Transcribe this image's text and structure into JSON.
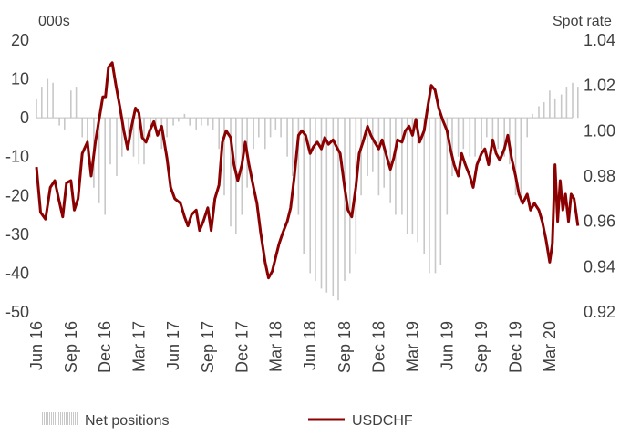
{
  "chart_data": {
    "type": "bar+line",
    "left_axis": {
      "unit_label": "000s",
      "range": [
        -50,
        20
      ],
      "ticks": [
        "20",
        "10",
        "0",
        "-10",
        "-20",
        "-30",
        "-40",
        "-50"
      ]
    },
    "right_axis": {
      "unit_label": "Spot rate",
      "range": [
        0.92,
        1.04
      ],
      "ticks": [
        "1.04",
        "1.02",
        "1.00",
        "0.98",
        "0.96",
        "0.94",
        "0.92"
      ]
    },
    "x_axis": {
      "start": "2016-06",
      "end": "2020-05",
      "tick_labels": [
        "Jun 16",
        "Sep 16",
        "Dec 16",
        "Mar 17",
        "Jun 17",
        "Sep 17",
        "Dec 17",
        "Mar 18",
        "Jun 18",
        "Sep 18",
        "Dec 18",
        "Mar 19",
        "Jun 19",
        "Sep 19",
        "Dec 19",
        "Mar 20"
      ]
    },
    "legend": {
      "position": "bottom",
      "bar_label": "Net positions",
      "line_label": "USDCHF"
    },
    "colors": {
      "line": "#8b0000",
      "bars": "#c8c8c8",
      "text": "#404040",
      "zero_line": "#bfbfbf"
    },
    "grid": false,
    "series": [
      {
        "name": "Net positions",
        "type": "bar",
        "axis": "left",
        "points": [
          [
            "2016-06-01",
            5
          ],
          [
            "2016-06-15",
            8
          ],
          [
            "2016-07-01",
            10
          ],
          [
            "2016-07-15",
            9
          ],
          [
            "2016-08-01",
            -2
          ],
          [
            "2016-08-15",
            -3
          ],
          [
            "2016-09-01",
            7
          ],
          [
            "2016-09-15",
            8
          ],
          [
            "2016-10-01",
            -5
          ],
          [
            "2016-10-15",
            -10
          ],
          [
            "2016-11-01",
            -18
          ],
          [
            "2016-11-15",
            -22
          ],
          [
            "2016-12-01",
            -25
          ],
          [
            "2016-12-15",
            -12
          ],
          [
            "2017-01-01",
            -15
          ],
          [
            "2017-01-15",
            -10
          ],
          [
            "2017-02-01",
            -8
          ],
          [
            "2017-02-15",
            -10
          ],
          [
            "2017-03-01",
            -12
          ],
          [
            "2017-03-15",
            -12
          ],
          [
            "2017-04-01",
            -5
          ],
          [
            "2017-04-15",
            -3
          ],
          [
            "2017-05-01",
            -8
          ],
          [
            "2017-05-15",
            -5
          ],
          [
            "2017-06-01",
            -2
          ],
          [
            "2017-06-15",
            -1
          ],
          [
            "2017-07-01",
            1
          ],
          [
            "2017-07-15",
            -2
          ],
          [
            "2017-08-01",
            -3
          ],
          [
            "2017-08-15",
            -2
          ],
          [
            "2017-09-01",
            -2
          ],
          [
            "2017-09-15",
            -3
          ],
          [
            "2017-10-01",
            -8
          ],
          [
            "2017-10-15",
            -20
          ],
          [
            "2017-11-01",
            -28
          ],
          [
            "2017-11-15",
            -30
          ],
          [
            "2017-12-01",
            -25
          ],
          [
            "2017-12-15",
            -18
          ],
          [
            "2018-01-01",
            -8
          ],
          [
            "2018-01-15",
            -5
          ],
          [
            "2018-02-01",
            -8
          ],
          [
            "2018-02-15",
            -5
          ],
          [
            "2018-03-01",
            -3
          ],
          [
            "2018-03-15",
            -5
          ],
          [
            "2018-04-01",
            -10
          ],
          [
            "2018-04-15",
            -15
          ],
          [
            "2018-05-01",
            -25
          ],
          [
            "2018-05-15",
            -35
          ],
          [
            "2018-06-01",
            -40
          ],
          [
            "2018-06-15",
            -42
          ],
          [
            "2018-07-01",
            -44
          ],
          [
            "2018-07-15",
            -45
          ],
          [
            "2018-08-01",
            -46
          ],
          [
            "2018-08-15",
            -47
          ],
          [
            "2018-09-01",
            -42
          ],
          [
            "2018-09-15",
            -40
          ],
          [
            "2018-10-01",
            -35
          ],
          [
            "2018-10-15",
            -20
          ],
          [
            "2018-11-01",
            -15
          ],
          [
            "2018-11-15",
            -14
          ],
          [
            "2018-12-01",
            -20
          ],
          [
            "2018-12-15",
            -18
          ],
          [
            "2019-01-01",
            -22
          ],
          [
            "2019-01-15",
            -25
          ],
          [
            "2019-02-01",
            -25
          ],
          [
            "2019-02-15",
            -30
          ],
          [
            "2019-03-01",
            -30
          ],
          [
            "2019-03-15",
            -32
          ],
          [
            "2019-04-01",
            -35
          ],
          [
            "2019-04-15",
            -40
          ],
          [
            "2019-05-01",
            -40
          ],
          [
            "2019-05-15",
            -38
          ],
          [
            "2019-06-01",
            -25
          ],
          [
            "2019-06-15",
            -15
          ],
          [
            "2019-07-01",
            -10
          ],
          [
            "2019-07-15",
            -8
          ],
          [
            "2019-08-01",
            -10
          ],
          [
            "2019-08-15",
            -10
          ],
          [
            "2019-09-01",
            -8
          ],
          [
            "2019-09-15",
            -5
          ],
          [
            "2019-10-01",
            -6
          ],
          [
            "2019-10-15",
            -8
          ],
          [
            "2019-11-01",
            -10
          ],
          [
            "2019-11-15",
            -12
          ],
          [
            "2019-12-01",
            -20
          ],
          [
            "2019-12-15",
            -22
          ],
          [
            "2020-01-01",
            -5
          ],
          [
            "2020-01-15",
            1
          ],
          [
            "2020-02-01",
            3
          ],
          [
            "2020-02-15",
            4
          ],
          [
            "2020-03-01",
            7
          ],
          [
            "2020-03-15",
            5
          ],
          [
            "2020-04-01",
            6
          ],
          [
            "2020-04-15",
            8
          ],
          [
            "2020-05-01",
            9
          ],
          [
            "2020-05-15",
            8
          ]
        ]
      },
      {
        "name": "USDCHF",
        "type": "line",
        "axis": "right",
        "points": [
          [
            "2016-06-01",
            0.984
          ],
          [
            "2016-06-12",
            0.964
          ],
          [
            "2016-06-25",
            0.961
          ],
          [
            "2016-07-08",
            0.975
          ],
          [
            "2016-07-20",
            0.978
          ],
          [
            "2016-07-30",
            0.97
          ],
          [
            "2016-08-10",
            0.962
          ],
          [
            "2016-08-20",
            0.977
          ],
          [
            "2016-09-01",
            0.978
          ],
          [
            "2016-09-10",
            0.965
          ],
          [
            "2016-09-20",
            0.97
          ],
          [
            "2016-10-01",
            0.99
          ],
          [
            "2016-10-15",
            0.995
          ],
          [
            "2016-10-25",
            0.98
          ],
          [
            "2016-11-05",
            0.995
          ],
          [
            "2016-11-15",
            1.005
          ],
          [
            "2016-11-25",
            1.015
          ],
          [
            "2016-12-02",
            1.015
          ],
          [
            "2016-12-10",
            1.028
          ],
          [
            "2016-12-20",
            1.03
          ],
          [
            "2016-12-30",
            1.02
          ],
          [
            "2017-01-10",
            1.01
          ],
          [
            "2017-01-20",
            1.0
          ],
          [
            "2017-01-30",
            0.992
          ],
          [
            "2017-02-10",
            1.002
          ],
          [
            "2017-02-20",
            1.01
          ],
          [
            "2017-03-01",
            1.008
          ],
          [
            "2017-03-10",
            0.997
          ],
          [
            "2017-03-20",
            0.995
          ],
          [
            "2017-03-30",
            1.0
          ],
          [
            "2017-04-10",
            1.004
          ],
          [
            "2017-04-20",
            0.998
          ],
          [
            "2017-05-01",
            1.002
          ],
          [
            "2017-05-15",
            0.988
          ],
          [
            "2017-05-25",
            0.975
          ],
          [
            "2017-06-05",
            0.97
          ],
          [
            "2017-06-20",
            0.968
          ],
          [
            "2017-07-01",
            0.962
          ],
          [
            "2017-07-10",
            0.958
          ],
          [
            "2017-07-20",
            0.963
          ],
          [
            "2017-08-01",
            0.965
          ],
          [
            "2017-08-10",
            0.956
          ],
          [
            "2017-08-20",
            0.96
          ],
          [
            "2017-09-01",
            0.966
          ],
          [
            "2017-09-10",
            0.956
          ],
          [
            "2017-09-20",
            0.97
          ],
          [
            "2017-10-01",
            0.976
          ],
          [
            "2017-10-10",
            0.995
          ],
          [
            "2017-10-20",
            1.0
          ],
          [
            "2017-11-01",
            0.997
          ],
          [
            "2017-11-10",
            0.985
          ],
          [
            "2017-11-20",
            0.978
          ],
          [
            "2017-12-01",
            0.985
          ],
          [
            "2017-12-10",
            0.995
          ],
          [
            "2017-12-20",
            0.985
          ],
          [
            "2018-01-01",
            0.975
          ],
          [
            "2018-01-10",
            0.968
          ],
          [
            "2018-01-20",
            0.955
          ],
          [
            "2018-02-01",
            0.942
          ],
          [
            "2018-02-10",
            0.935
          ],
          [
            "2018-02-20",
            0.938
          ],
          [
            "2018-03-01",
            0.944
          ],
          [
            "2018-03-10",
            0.95
          ],
          [
            "2018-03-20",
            0.955
          ],
          [
            "2018-04-01",
            0.96
          ],
          [
            "2018-04-10",
            0.966
          ],
          [
            "2018-04-20",
            0.98
          ],
          [
            "2018-05-01",
            0.998
          ],
          [
            "2018-05-10",
            1.0
          ],
          [
            "2018-05-20",
            0.998
          ],
          [
            "2018-06-01",
            0.99
          ],
          [
            "2018-06-10",
            0.993
          ],
          [
            "2018-06-20",
            0.995
          ],
          [
            "2018-07-01",
            0.992
          ],
          [
            "2018-07-10",
            0.997
          ],
          [
            "2018-07-20",
            0.994
          ],
          [
            "2018-08-01",
            0.996
          ],
          [
            "2018-08-10",
            0.993
          ],
          [
            "2018-08-20",
            0.99
          ],
          [
            "2018-09-01",
            0.975
          ],
          [
            "2018-09-10",
            0.965
          ],
          [
            "2018-09-20",
            0.962
          ],
          [
            "2018-10-01",
            0.975
          ],
          [
            "2018-10-10",
            0.99
          ],
          [
            "2018-10-20",
            0.995
          ],
          [
            "2018-11-01",
            1.002
          ],
          [
            "2018-11-10",
            0.998
          ],
          [
            "2018-11-20",
            0.995
          ],
          [
            "2018-12-01",
            0.992
          ],
          [
            "2018-12-10",
            0.996
          ],
          [
            "2018-12-20",
            0.99
          ],
          [
            "2019-01-01",
            0.983
          ],
          [
            "2019-01-10",
            0.988
          ],
          [
            "2019-01-20",
            0.996
          ],
          [
            "2019-02-01",
            0.995
          ],
          [
            "2019-02-10",
            1.0
          ],
          [
            "2019-02-20",
            1.002
          ],
          [
            "2019-03-01",
            0.998
          ],
          [
            "2019-03-10",
            1.005
          ],
          [
            "2019-03-20",
            0.995
          ],
          [
            "2019-04-01",
            1.0
          ],
          [
            "2019-04-10",
            1.01
          ],
          [
            "2019-04-20",
            1.02
          ],
          [
            "2019-04-30",
            1.018
          ],
          [
            "2019-05-10",
            1.01
          ],
          [
            "2019-05-20",
            1.005
          ],
          [
            "2019-06-01",
            1.0
          ],
          [
            "2019-06-10",
            0.992
          ],
          [
            "2019-06-20",
            0.985
          ],
          [
            "2019-07-01",
            0.98
          ],
          [
            "2019-07-10",
            0.99
          ],
          [
            "2019-07-20",
            0.985
          ],
          [
            "2019-08-01",
            0.98
          ],
          [
            "2019-08-10",
            0.975
          ],
          [
            "2019-08-20",
            0.985
          ],
          [
            "2019-09-01",
            0.99
          ],
          [
            "2019-09-10",
            0.992
          ],
          [
            "2019-09-20",
            0.985
          ],
          [
            "2019-10-01",
            0.996
          ],
          [
            "2019-10-10",
            0.99
          ],
          [
            "2019-10-20",
            0.987
          ],
          [
            "2019-11-01",
            0.992
          ],
          [
            "2019-11-10",
            0.998
          ],
          [
            "2019-11-20",
            0.988
          ],
          [
            "2019-12-01",
            0.98
          ],
          [
            "2019-12-10",
            0.972
          ],
          [
            "2019-12-20",
            0.968
          ],
          [
            "2020-01-01",
            0.972
          ],
          [
            "2020-01-10",
            0.965
          ],
          [
            "2020-01-20",
            0.968
          ],
          [
            "2020-02-01",
            0.965
          ],
          [
            "2020-02-10",
            0.96
          ],
          [
            "2020-02-20",
            0.952
          ],
          [
            "2020-03-01",
            0.942
          ],
          [
            "2020-03-08",
            0.95
          ],
          [
            "2020-03-15",
            0.985
          ],
          [
            "2020-03-22",
            0.96
          ],
          [
            "2020-03-29",
            0.978
          ],
          [
            "2020-04-05",
            0.965
          ],
          [
            "2020-04-12",
            0.972
          ],
          [
            "2020-04-20",
            0.96
          ],
          [
            "2020-04-27",
            0.972
          ],
          [
            "2020-05-05",
            0.97
          ],
          [
            "2020-05-15",
            0.958
          ]
        ]
      }
    ]
  }
}
